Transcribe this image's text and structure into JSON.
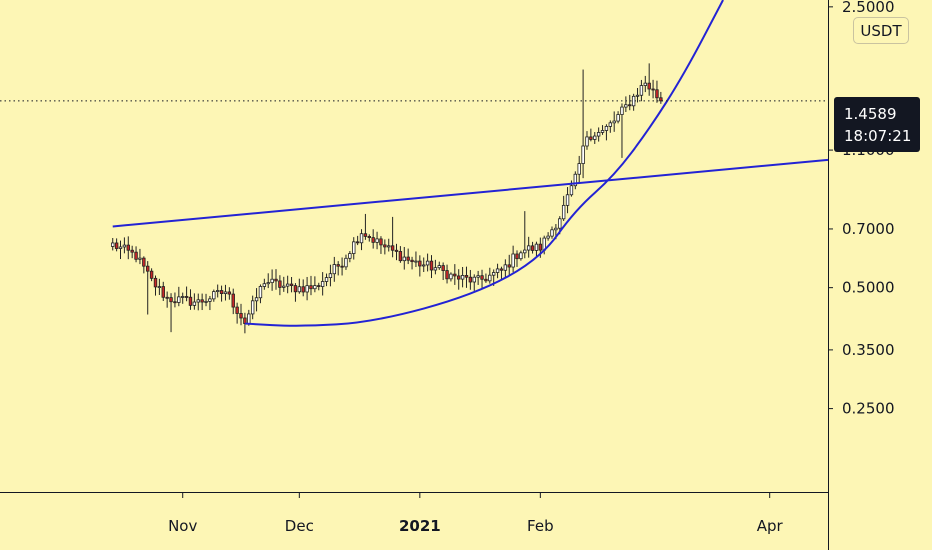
{
  "chart_data": {
    "type": "candlestick",
    "title": "",
    "xlabel": "",
    "ylabel": "",
    "y_scale": "log",
    "ylim": [
      0.155,
      2.6
    ],
    "xlim": [
      "2020-09-15",
      "2021-04-16"
    ],
    "y_ticks": [
      "2.5000",
      "1.1000",
      "0.7000",
      "0.5000",
      "0.3500",
      "0.2500"
    ],
    "x_ticks": [
      {
        "label": "Nov",
        "date": "2020-11-01",
        "bold": false
      },
      {
        "label": "Dec",
        "date": "2020-12-01",
        "bold": false
      },
      {
        "label": "2021",
        "date": "2021-01-01",
        "bold": true
      },
      {
        "label": "Feb",
        "date": "2021-02-01",
        "bold": false
      },
      {
        "label": "Apr",
        "date": "2021-04-01",
        "bold": false
      }
    ],
    "currency": "USDT",
    "last_price": "1.4589",
    "countdown": "18:07:21",
    "colors": {
      "background": "#fdf6b5",
      "up": "#2e7d32",
      "down": "#c62828",
      "wick": "#222222",
      "trendline": "#2323d4",
      "text": "#131722"
    },
    "close_anchors": [
      {
        "date": "2020-10-14",
        "price": 0.64
      },
      {
        "date": "2020-10-20",
        "price": 0.6
      },
      {
        "date": "2020-10-24",
        "price": 0.52
      },
      {
        "date": "2020-10-28",
        "price": 0.47
      },
      {
        "date": "2020-11-05",
        "price": 0.46
      },
      {
        "date": "2020-11-12",
        "price": 0.49
      },
      {
        "date": "2020-11-17",
        "price": 0.41
      },
      {
        "date": "2020-11-22",
        "price": 0.52
      },
      {
        "date": "2020-11-28",
        "price": 0.5
      },
      {
        "date": "2020-12-05",
        "price": 0.5
      },
      {
        "date": "2020-12-12",
        "price": 0.58
      },
      {
        "date": "2020-12-17",
        "price": 0.69
      },
      {
        "date": "2020-12-23",
        "price": 0.63
      },
      {
        "date": "2020-12-30",
        "price": 0.58
      },
      {
        "date": "2021-01-05",
        "price": 0.56
      },
      {
        "date": "2021-01-10",
        "price": 0.53
      },
      {
        "date": "2021-01-16",
        "price": 0.52
      },
      {
        "date": "2021-01-22",
        "price": 0.55
      },
      {
        "date": "2021-01-27",
        "price": 0.62
      },
      {
        "date": "2021-02-01",
        "price": 0.63
      },
      {
        "date": "2021-02-06",
        "price": 0.75
      },
      {
        "date": "2021-02-10",
        "price": 0.93
      },
      {
        "date": "2021-02-13",
        "price": 1.2
      },
      {
        "date": "2021-02-17",
        "price": 1.22
      },
      {
        "date": "2021-02-20",
        "price": 1.3
      },
      {
        "date": "2021-02-24",
        "price": 1.45
      },
      {
        "date": "2021-02-28",
        "price": 1.62
      },
      {
        "date": "2021-03-04",
        "price": 1.4589
      }
    ],
    "trendlines": [
      {
        "type": "straight",
        "start": {
          "date": "2020-10-14",
          "price": 0.71
        },
        "end": {
          "date": "2021-04-16",
          "price": 1.04
        }
      },
      {
        "type": "curve",
        "points": [
          {
            "date": "2020-11-17",
            "price": 0.407
          },
          {
            "date": "2020-12-01",
            "price": 0.4
          },
          {
            "date": "2020-12-20",
            "price": 0.41
          },
          {
            "date": "2021-01-15",
            "price": 0.48
          },
          {
            "date": "2021-02-01",
            "price": 0.59
          },
          {
            "date": "2021-02-10",
            "price": 0.78
          },
          {
            "date": "2021-02-20",
            "price": 0.95
          },
          {
            "date": "2021-03-01",
            "price": 1.24
          },
          {
            "date": "2021-03-10",
            "price": 1.7
          },
          {
            "date": "2021-03-20",
            "price": 2.6
          }
        ]
      }
    ]
  }
}
